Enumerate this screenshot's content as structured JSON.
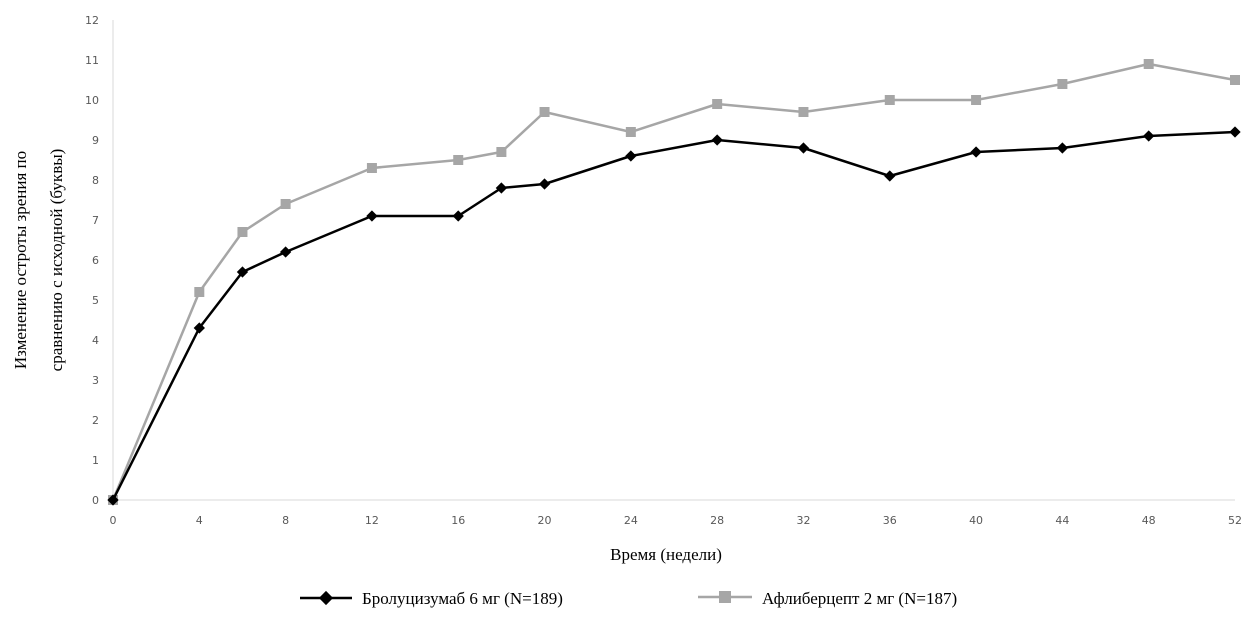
{
  "chart_data": {
    "type": "line",
    "title": "",
    "xlabel": "Время (недели)",
    "ylabel_lines": [
      "Изменение остроты зрения по",
      "сравнению с исходной (буквы)"
    ],
    "x_ticks": [
      0,
      4,
      8,
      12,
      16,
      20,
      24,
      28,
      32,
      36,
      40,
      44,
      48,
      52
    ],
    "y_ticks": [
      0,
      1,
      2,
      3,
      4,
      5,
      6,
      7,
      8,
      9,
      10,
      11,
      12
    ],
    "xlim": [
      0,
      52
    ],
    "ylim": [
      0,
      12
    ],
    "grid": false,
    "legend_position": "bottom",
    "series": [
      {
        "name": "Бролуцизумаб 6 мг (N=189)",
        "color": "#000000",
        "marker": "diamond",
        "x": [
          0,
          4,
          6,
          8,
          12,
          16,
          18,
          20,
          24,
          28,
          32,
          36,
          40,
          44,
          48,
          52
        ],
        "y": [
          0,
          4.3,
          5.7,
          6.2,
          7.1,
          7.1,
          7.8,
          7.9,
          8.6,
          9.0,
          8.8,
          8.1,
          8.7,
          8.8,
          9.1,
          9.2
        ]
      },
      {
        "name": "Афлиберцепт 2 мг (N=187)",
        "color": "#a6a6a6",
        "marker": "square",
        "x": [
          0,
          4,
          6,
          8,
          12,
          16,
          18,
          20,
          24,
          28,
          32,
          36,
          40,
          44,
          48,
          52
        ],
        "y": [
          0,
          5.2,
          6.7,
          7.4,
          8.3,
          8.5,
          8.7,
          9.7,
          9.2,
          9.9,
          9.7,
          10.0,
          10.0,
          10.4,
          10.9,
          10.5
        ]
      }
    ]
  }
}
